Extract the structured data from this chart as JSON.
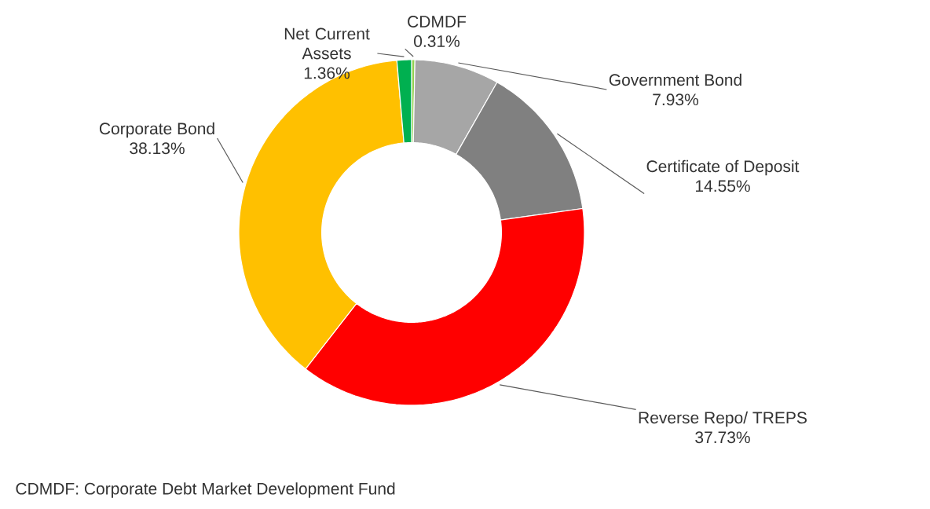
{
  "chart_data": {
    "type": "donut",
    "categories": [
      "CDMDF",
      "Government Bond",
      "Certificate of Deposit",
      "Reverse Repo/ TREPS",
      "Corporate Bond",
      "Net Current Assets"
    ],
    "values": [
      0.31,
      7.93,
      14.55,
      37.73,
      38.13,
      1.36
    ],
    "value_labels": [
      "0.31%",
      "7.93%",
      "14.55%",
      "37.73%",
      "38.13%",
      "1.36%"
    ],
    "colors": [
      "#92d050",
      "#a6a6a6",
      "#808080",
      "#ff0000",
      "#ffc000",
      "#00b050"
    ],
    "annotations": [
      "CDMDF: Corporate Debt Market Development Fund"
    ]
  }
}
